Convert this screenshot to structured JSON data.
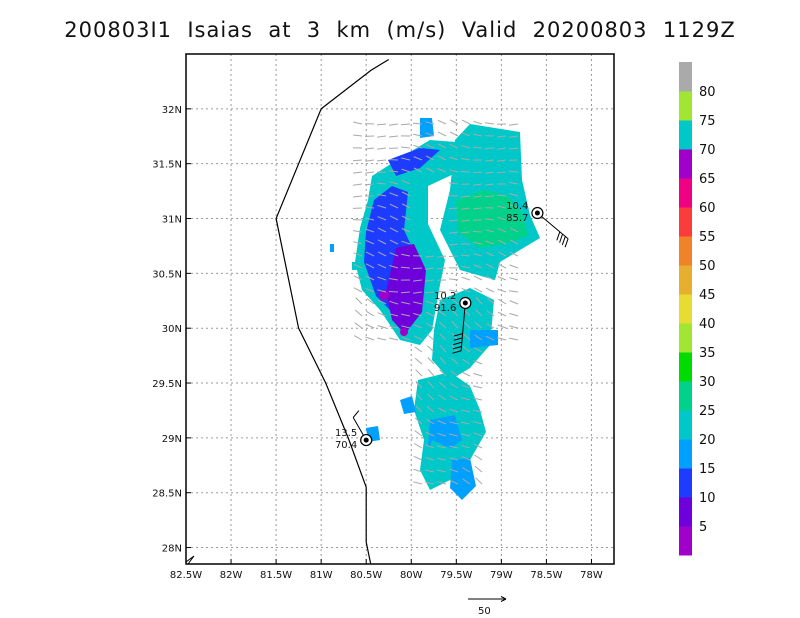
{
  "title": "200803I1  Isaias  at  3  km  (m/s)  Valid  20200803  1129Z",
  "map": {
    "lon_min": -82.5,
    "lon_max": -77.75,
    "lat_min": 27.85,
    "lat_max": 32.5,
    "grid": true,
    "lon_ticks": [
      {
        "v": -82.5,
        "label": "82.5W"
      },
      {
        "v": -82,
        "label": "82W"
      },
      {
        "v": -81.5,
        "label": "81.5W"
      },
      {
        "v": -81,
        "label": "81W"
      },
      {
        "v": -80.5,
        "label": "80.5W"
      },
      {
        "v": -80,
        "label": "80W"
      },
      {
        "v": -79.5,
        "label": "79.5W"
      },
      {
        "v": -79,
        "label": "79W"
      },
      {
        "v": -78.5,
        "label": "78.5W"
      },
      {
        "v": -78,
        "label": "78W"
      }
    ],
    "lat_ticks": [
      {
        "v": 28,
        "label": "28N"
      },
      {
        "v": 28.5,
        "label": "28.5N"
      },
      {
        "v": 29,
        "label": "29N"
      },
      {
        "v": 29.5,
        "label": "29.5N"
      },
      {
        "v": 30,
        "label": "30N"
      },
      {
        "v": 30.5,
        "label": "30.5N"
      },
      {
        "v": 31,
        "label": "31N"
      },
      {
        "v": 31.5,
        "label": "31.5N"
      },
      {
        "v": 32,
        "label": "32N"
      }
    ],
    "coastline": [
      [
        -80.25,
        32.45
      ],
      [
        -80.45,
        32.35
      ],
      [
        -81.0,
        32.0
      ],
      [
        -81.5,
        31.0
      ],
      [
        -81.25,
        30.0
      ],
      [
        -80.95,
        29.5
      ],
      [
        -80.7,
        29.0
      ],
      [
        -80.5,
        28.55
      ],
      [
        -80.5,
        28.05
      ],
      [
        -80.45,
        27.85
      ]
    ]
  },
  "stations": [
    {
      "lon": -78.6,
      "lat": 31.05,
      "line1": "10.4",
      "line2": "85.7"
    },
    {
      "lon": -79.4,
      "lat": 30.23,
      "line1": "10.2",
      "line2": "91.6"
    },
    {
      "lon": -80.5,
      "lat": 28.98,
      "line1": "13.5",
      "line2": "70.4"
    }
  ],
  "colorbar": {
    "levels": [
      "5",
      "10",
      "15",
      "20",
      "25",
      "30",
      "35",
      "40",
      "45",
      "50",
      "55",
      "60",
      "65",
      "70",
      "75",
      "80"
    ],
    "colors": [
      "#a000c8",
      "#6e00dc",
      "#1e3cff",
      "#00a0ff",
      "#00c8c8",
      "#00d28c",
      "#00dc00",
      "#a0e632",
      "#e6dc32",
      "#e6af2d",
      "#f08228",
      "#fa3c3c",
      "#f00082",
      "#a000c8",
      "#00c8c8",
      "#a0e632",
      "#aaaaaa"
    ]
  },
  "wind_scale": {
    "label": "50"
  }
}
